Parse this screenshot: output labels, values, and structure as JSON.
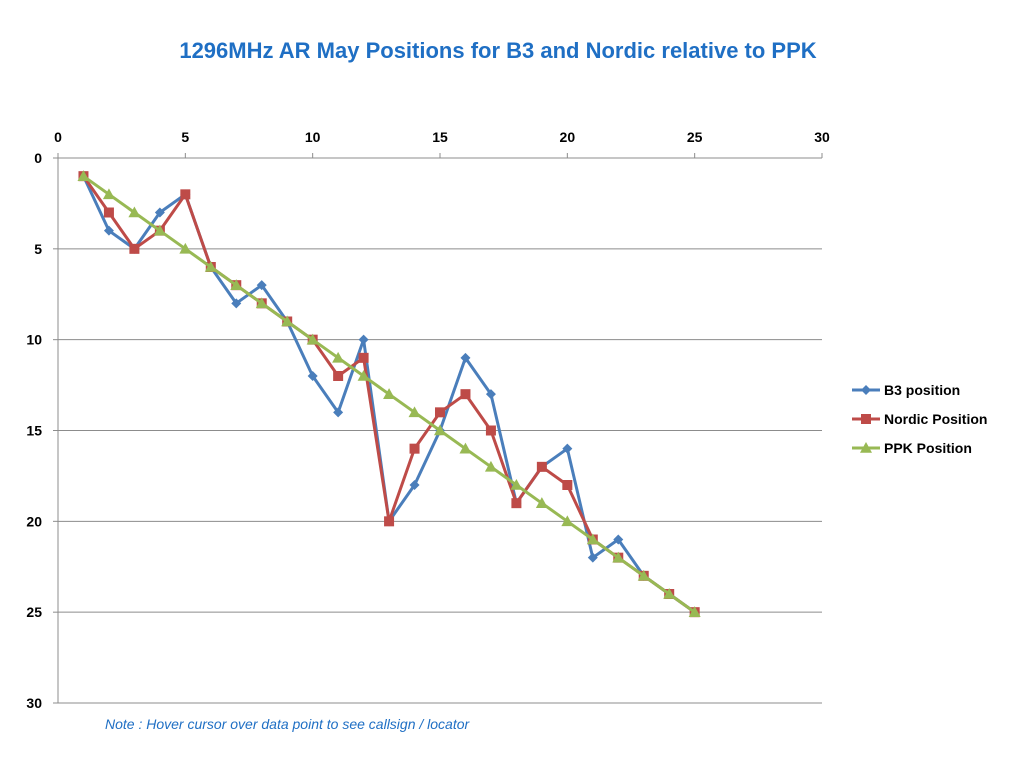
{
  "chart_data": {
    "type": "line",
    "title": "1296MHz AR May Positions for B3 and Nordic relative to PPK",
    "x_ticks": [
      "0",
      "5",
      "10",
      "15",
      "20",
      "25",
      "30"
    ],
    "y_ticks": [
      "0",
      "5",
      "10",
      "15",
      "20",
      "25",
      "30"
    ],
    "xlim": [
      0,
      30
    ],
    "ylim": [
      0,
      30
    ],
    "y_inverted": true,
    "x_axis_position": "top",
    "grid": "horizontal",
    "legend_position": "right",
    "x": [
      1,
      2,
      3,
      4,
      5,
      6,
      7,
      8,
      9,
      10,
      11,
      12,
      13,
      14,
      15,
      16,
      17,
      18,
      19,
      20,
      21,
      22,
      23,
      24,
      25
    ],
    "series": [
      {
        "name": "B3 position",
        "color": "#4a7ebb",
        "marker": "diamond",
        "values": [
          1,
          4,
          5,
          3,
          2,
          6,
          8,
          7,
          9,
          12,
          14,
          10,
          20,
          18,
          15,
          11,
          13,
          19,
          17,
          16,
          22,
          21,
          23,
          24,
          25
        ]
      },
      {
        "name": "Nordic Position",
        "color": "#be4b48",
        "marker": "square",
        "values": [
          1,
          3,
          5,
          4,
          2,
          6,
          7,
          8,
          9,
          10,
          12,
          11,
          20,
          16,
          14,
          13,
          15,
          19,
          17,
          18,
          21,
          22,
          23,
          24,
          25
        ]
      },
      {
        "name": "PPK Position",
        "color": "#98b954",
        "marker": "triangle",
        "values": [
          1,
          2,
          3,
          4,
          5,
          6,
          7,
          8,
          9,
          10,
          11,
          12,
          13,
          14,
          15,
          16,
          17,
          18,
          19,
          20,
          21,
          22,
          23,
          24,
          25
        ]
      }
    ]
  },
  "note": "Note : Hover cursor over data point to see callsign / locator"
}
